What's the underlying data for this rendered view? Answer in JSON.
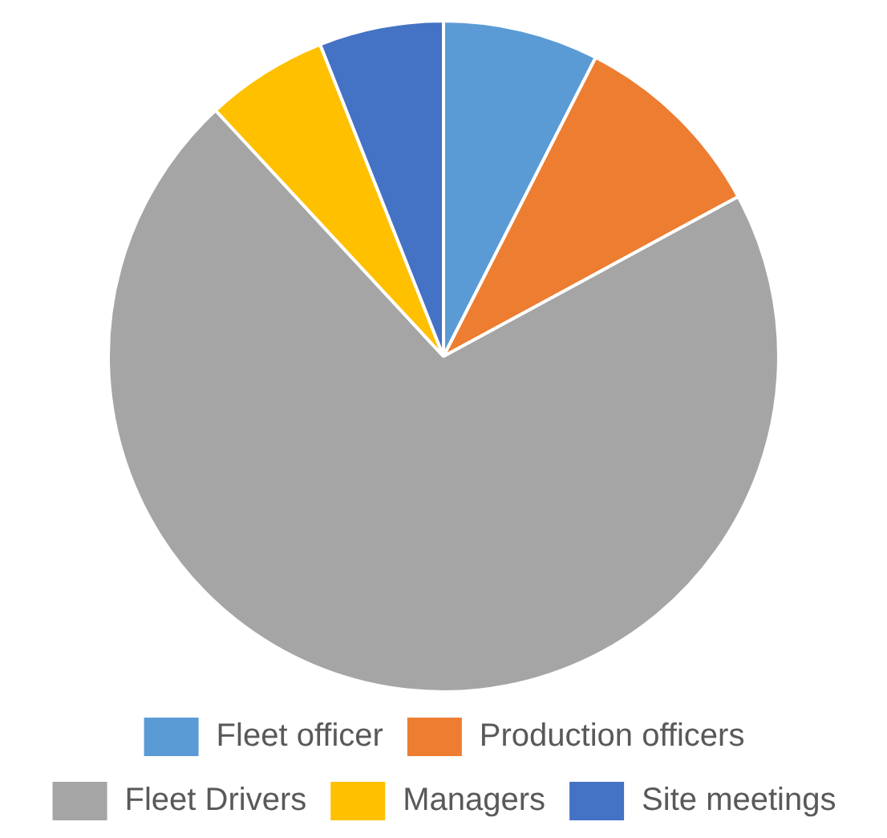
{
  "chart_data": {
    "type": "pie",
    "categories": [
      "Fleet officer",
      "Production officers",
      "Fleet Drivers",
      "Managers",
      "Site meetings"
    ],
    "values": [
      7.5,
      9.6,
      71,
      5.9,
      6.0
    ],
    "colors": [
      "#5b9bd5",
      "#ed7d31",
      "#a5a5a5",
      "#ffc000",
      "#4472c4"
    ],
    "legend": "bottom"
  }
}
